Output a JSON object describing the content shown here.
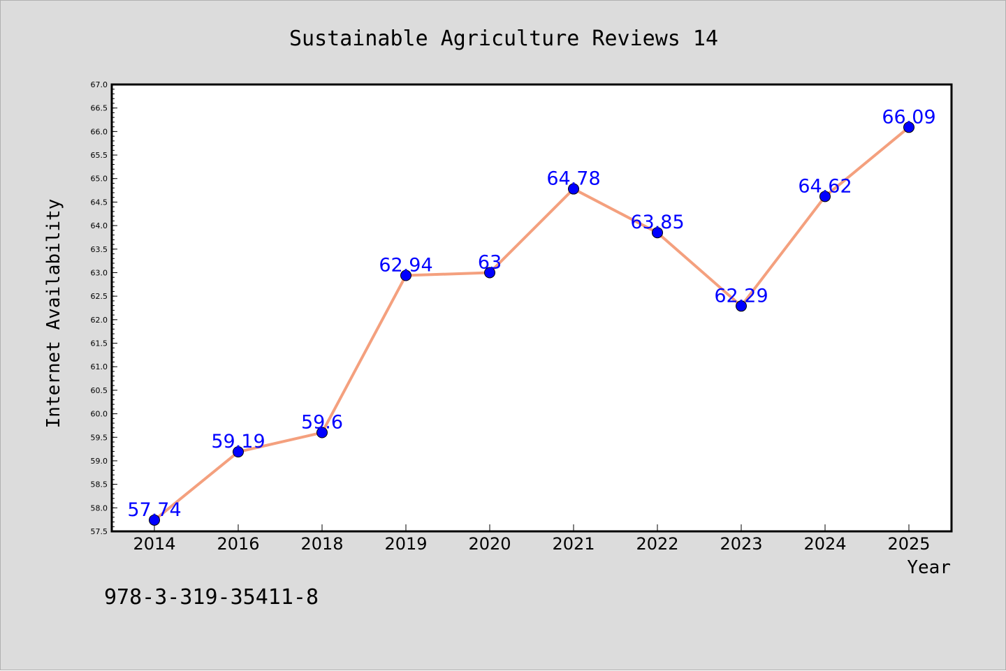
{
  "chart_data": {
    "type": "line",
    "title": "Sustainable Agriculture Reviews 14",
    "xlabel": "Year",
    "ylabel": "Internet Availability",
    "categories": [
      "2014",
      "2016",
      "2018",
      "2019",
      "2020",
      "2021",
      "2022",
      "2023",
      "2024",
      "2025"
    ],
    "series": [
      {
        "values": [
          57.74,
          59.19,
          59.6,
          62.94,
          63,
          64.78,
          63.85,
          62.29,
          64.62,
          66.09
        ],
        "labels": [
          "57.74",
          "59.19",
          "59.6",
          "62.94",
          "63",
          "64.78",
          "63.85",
          "62.29",
          "64.62",
          "66.09"
        ],
        "line_color": "#f4a07e",
        "marker_color": "#0000ff"
      }
    ],
    "ylim": [
      57.5,
      67.0
    ],
    "yticks": [
      "57.5",
      "58.0",
      "58.5",
      "59.0",
      "59.5",
      "60.0",
      "60.5",
      "61.0",
      "61.5",
      "62.0",
      "62.5",
      "63.0",
      "63.5",
      "64.0",
      "64.5",
      "65.0",
      "65.5",
      "66.0",
      "66.5",
      "67.0"
    ],
    "grid": false,
    "legend": "none",
    "label_color": "#0000ff",
    "background_color": "#dcdcdc",
    "plot_background": "#ffffff"
  },
  "footnote": "978-3-319-35411-8"
}
